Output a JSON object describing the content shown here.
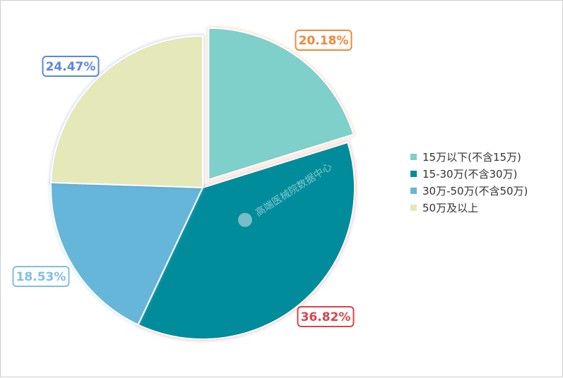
{
  "chart_data": {
    "type": "pie",
    "title": "",
    "categories": [
      "15万以下(不含15万)",
      "15-30万(不含30万)",
      "30万-50万(不含50万)",
      "50万及以上"
    ],
    "values": [
      20.18,
      36.82,
      18.53,
      24.47
    ],
    "value_labels": [
      "20.18%",
      "36.82%",
      "18.53%",
      "24.47%"
    ],
    "exploded_slice": "15万以下(不含15万)",
    "legend_position": "right",
    "colors": [
      "#7fcfca",
      "#008c9b",
      "#66b6da",
      "#e5e8b8"
    ],
    "label_colors": [
      "#f0883a",
      "#d9444a",
      "#7fbfe8",
      "#5b86e0"
    ]
  },
  "watermark": "高端医械院数据中心"
}
